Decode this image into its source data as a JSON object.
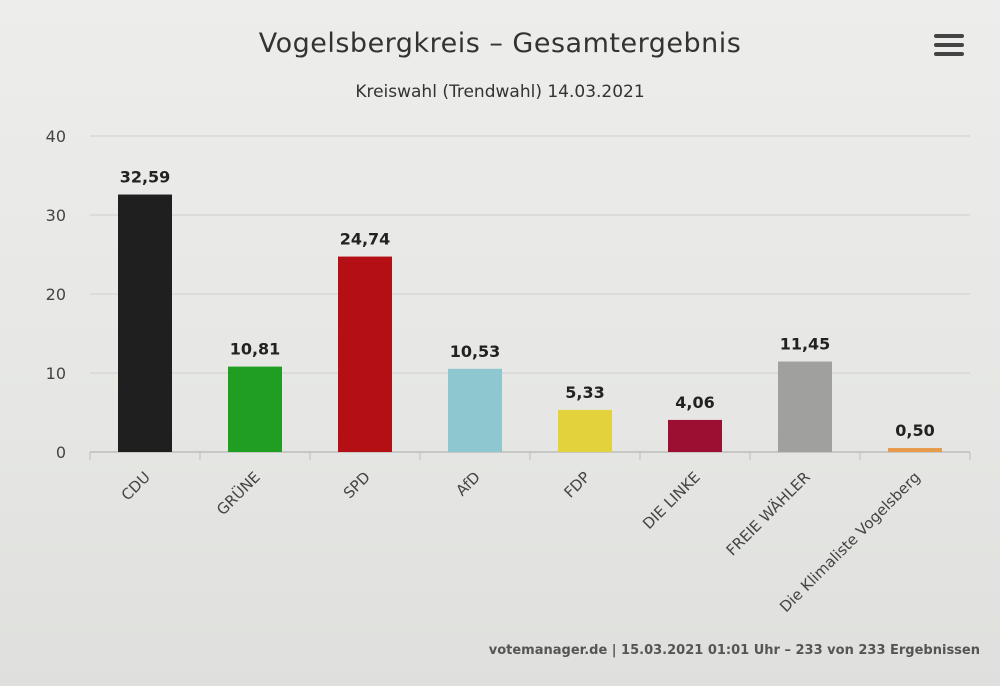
{
  "chart_data": {
    "type": "bar",
    "title": "Vogelsbergkreis – Gesamtergebnis",
    "subtitle": "Kreiswahl (Trendwahl) 14.03.2021",
    "categories": [
      "CDU",
      "GRÜNE",
      "SPD",
      "AfD",
      "FDP",
      "DIE LINKE",
      "FREIE WÄHLER",
      "Die Klimaliste Vogelsberg"
    ],
    "values": [
      32.59,
      10.81,
      24.74,
      10.53,
      5.33,
      4.06,
      11.45,
      0.5
    ],
    "value_labels": [
      "32,59",
      "10,81",
      "24,74",
      "10,53",
      "5,33",
      "4,06",
      "11,45",
      "0,50"
    ],
    "colors": [
      "#1f1f1f",
      "#1f9e22",
      "#b30f15",
      "#8fc7d1",
      "#e3d23b",
      "#9d0e33",
      "#a0a19f",
      "#e69a4a"
    ],
    "yticks": [
      0,
      10,
      20,
      30,
      40
    ],
    "ylim": [
      0,
      40
    ],
    "grid": true,
    "legend": false
  },
  "menu_icon": "hamburger-menu-icon",
  "source_text": "votemanager.de | 15.03.2021 01:01 Uhr – 233 von 233 Ergebnissen"
}
